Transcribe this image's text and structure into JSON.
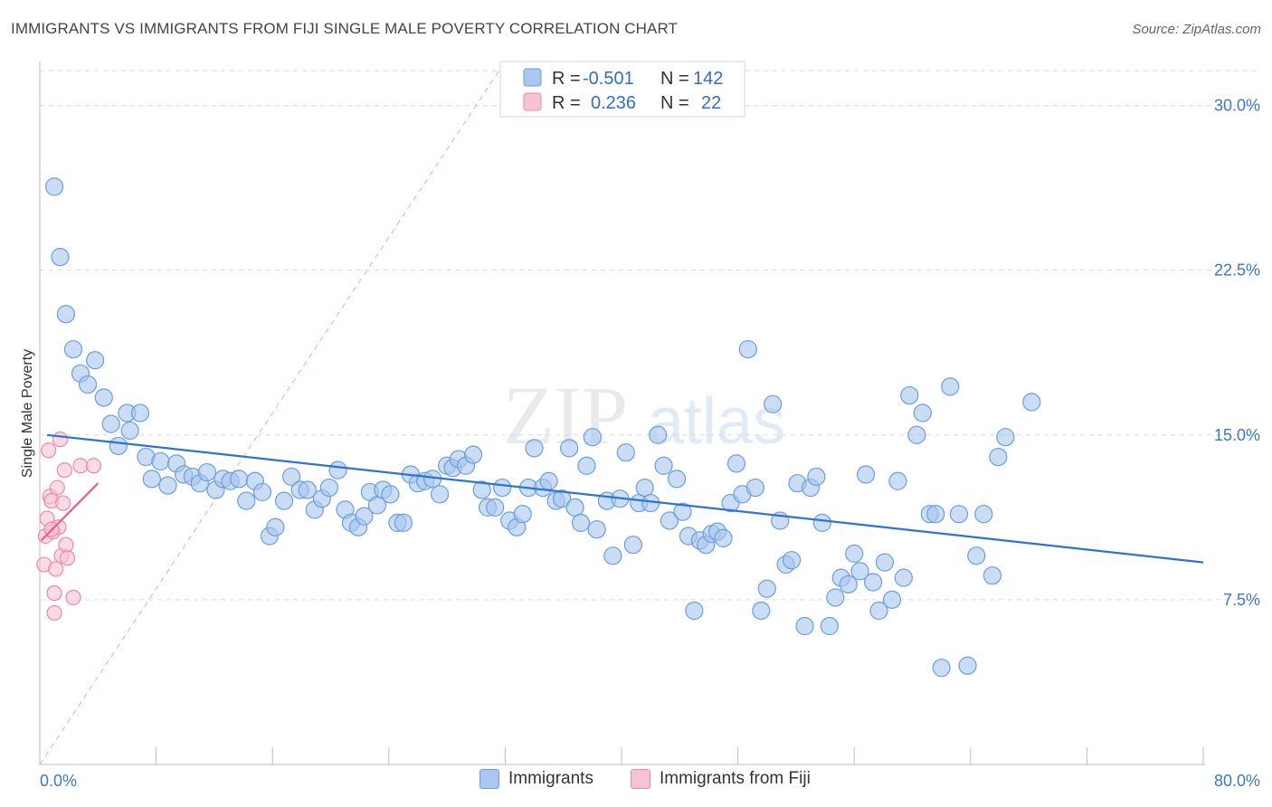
{
  "header": {
    "title": "IMMIGRANTS VS IMMIGRANTS FROM FIJI SINGLE MALE POVERTY CORRELATION CHART",
    "source": "Source: ZipAtlas.com"
  },
  "watermark": {
    "zip": "ZIP",
    "atlas": "atlas"
  },
  "legend_top": {
    "rows": [
      {
        "r_label": "R =",
        "r_value": "-0.501",
        "n_label": "N =",
        "n_value": "142"
      },
      {
        "r_label": "R =",
        "r_value": "0.236",
        "n_label": "N =",
        "n_value": "22"
      }
    ]
  },
  "legend_bottom": {
    "immigrants": "Immigrants",
    "fiji": "Immigrants from Fiji"
  },
  "colors": {
    "blue_fill": "#a9c7ef",
    "blue_stroke": "#6a9ee0",
    "blue_line": "#2e72d2",
    "pink_fill": "#f6c3d3",
    "pink_stroke": "#e98aa9",
    "pink_line": "#e0628b",
    "grid": "#d9d9d9",
    "tick_label": "#3a78c9"
  },
  "chart_data": {
    "type": "scatter",
    "title": "IMMIGRANTS VS IMMIGRANTS FROM FIJI SINGLE MALE POVERTY CORRELATION CHART",
    "xlabel": "",
    "ylabel": "Single Male Poverty",
    "xlim": [
      0,
      80
    ],
    "ylim": [
      0,
      32
    ],
    "x_tick_labels": [
      "0.0%",
      "80.0%"
    ],
    "y_tick_labels": [
      "7.5%",
      "15.0%",
      "22.5%",
      "30.0%"
    ],
    "y_ticks": [
      7.5,
      15.0,
      22.5,
      30.0
    ],
    "grid": true,
    "legend_placement": "top-center",
    "series": [
      {
        "name": "Immigrants",
        "R": -0.501,
        "N": 142,
        "trend": {
          "x": [
            0.5,
            80.0
          ],
          "y": [
            15.0,
            9.2
          ]
        },
        "points": [
          [
            1.0,
            26.3
          ],
          [
            1.4,
            23.1
          ],
          [
            1.8,
            20.5
          ],
          [
            2.3,
            18.9
          ],
          [
            2.8,
            17.8
          ],
          [
            3.3,
            17.3
          ],
          [
            3.8,
            18.4
          ],
          [
            4.4,
            16.7
          ],
          [
            4.9,
            15.5
          ],
          [
            5.4,
            14.5
          ],
          [
            6.0,
            16.0
          ],
          [
            6.2,
            15.2
          ],
          [
            6.9,
            16.0
          ],
          [
            7.3,
            14.0
          ],
          [
            7.7,
            13.0
          ],
          [
            8.3,
            13.8
          ],
          [
            8.8,
            12.7
          ],
          [
            9.4,
            13.7
          ],
          [
            9.9,
            13.2
          ],
          [
            10.5,
            13.1
          ],
          [
            11.0,
            12.8
          ],
          [
            11.5,
            13.3
          ],
          [
            12.1,
            12.5
          ],
          [
            12.6,
            13.0
          ],
          [
            13.1,
            12.9
          ],
          [
            13.7,
            13.0
          ],
          [
            14.2,
            12.0
          ],
          [
            14.8,
            12.9
          ],
          [
            15.3,
            12.4
          ],
          [
            15.8,
            10.4
          ],
          [
            16.2,
            10.8
          ],
          [
            16.8,
            12.0
          ],
          [
            17.3,
            13.1
          ],
          [
            17.9,
            12.5
          ],
          [
            18.4,
            12.5
          ],
          [
            18.9,
            11.6
          ],
          [
            19.4,
            12.1
          ],
          [
            19.9,
            12.6
          ],
          [
            20.5,
            13.4
          ],
          [
            21.0,
            11.6
          ],
          [
            21.4,
            11.0
          ],
          [
            21.9,
            10.8
          ],
          [
            22.3,
            11.3
          ],
          [
            22.7,
            12.4
          ],
          [
            23.2,
            11.8
          ],
          [
            23.6,
            12.5
          ],
          [
            24.1,
            12.3
          ],
          [
            24.6,
            11.0
          ],
          [
            25.0,
            11.0
          ],
          [
            25.5,
            13.2
          ],
          [
            26.0,
            12.8
          ],
          [
            26.5,
            12.9
          ],
          [
            27.0,
            13.0
          ],
          [
            27.5,
            12.3
          ],
          [
            28.0,
            13.6
          ],
          [
            28.4,
            13.5
          ],
          [
            28.8,
            13.9
          ],
          [
            29.3,
            13.6
          ],
          [
            29.8,
            14.1
          ],
          [
            30.4,
            12.5
          ],
          [
            30.8,
            11.7
          ],
          [
            31.3,
            11.7
          ],
          [
            31.8,
            12.6
          ],
          [
            32.3,
            11.1
          ],
          [
            32.8,
            10.8
          ],
          [
            33.2,
            11.4
          ],
          [
            33.6,
            12.6
          ],
          [
            34.0,
            14.4
          ],
          [
            34.6,
            12.6
          ],
          [
            35.0,
            12.9
          ],
          [
            35.5,
            12.0
          ],
          [
            35.9,
            12.1
          ],
          [
            36.4,
            14.4
          ],
          [
            36.8,
            11.7
          ],
          [
            37.2,
            11.0
          ],
          [
            37.6,
            13.6
          ],
          [
            38.0,
            14.9
          ],
          [
            38.3,
            10.7
          ],
          [
            39.0,
            12.0
          ],
          [
            39.4,
            9.5
          ],
          [
            39.9,
            12.1
          ],
          [
            40.3,
            14.2
          ],
          [
            40.8,
            10.0
          ],
          [
            41.2,
            11.9
          ],
          [
            41.6,
            12.6
          ],
          [
            42.0,
            11.9
          ],
          [
            42.5,
            15.0
          ],
          [
            42.9,
            13.6
          ],
          [
            43.3,
            11.1
          ],
          [
            43.8,
            13.0
          ],
          [
            44.2,
            11.5
          ],
          [
            44.6,
            10.4
          ],
          [
            45.0,
            7.0
          ],
          [
            45.4,
            10.2
          ],
          [
            45.8,
            10.0
          ],
          [
            46.2,
            10.5
          ],
          [
            46.6,
            10.6
          ],
          [
            47.0,
            10.3
          ],
          [
            47.5,
            11.9
          ],
          [
            47.9,
            13.7
          ],
          [
            48.3,
            12.3
          ],
          [
            48.7,
            18.9
          ],
          [
            49.2,
            12.6
          ],
          [
            49.6,
            7.0
          ],
          [
            50.0,
            8.0
          ],
          [
            50.4,
            16.4
          ],
          [
            50.9,
            11.1
          ],
          [
            51.3,
            9.1
          ],
          [
            51.7,
            9.3
          ],
          [
            52.1,
            12.8
          ],
          [
            52.6,
            6.3
          ],
          [
            53.0,
            12.6
          ],
          [
            53.4,
            13.1
          ],
          [
            53.8,
            11.0
          ],
          [
            54.3,
            6.3
          ],
          [
            54.7,
            7.6
          ],
          [
            55.1,
            8.5
          ],
          [
            55.6,
            8.2
          ],
          [
            56.0,
            9.6
          ],
          [
            56.4,
            8.8
          ],
          [
            56.8,
            13.2
          ],
          [
            57.3,
            8.3
          ],
          [
            57.7,
            7.0
          ],
          [
            58.1,
            9.2
          ],
          [
            58.6,
            7.5
          ],
          [
            59.0,
            12.9
          ],
          [
            59.4,
            8.5
          ],
          [
            59.8,
            16.8
          ],
          [
            60.3,
            15.0
          ],
          [
            60.7,
            16.0
          ],
          [
            61.2,
            11.4
          ],
          [
            61.6,
            11.4
          ],
          [
            62.0,
            4.4
          ],
          [
            62.6,
            17.2
          ],
          [
            63.2,
            11.4
          ],
          [
            63.8,
            4.5
          ],
          [
            64.4,
            9.5
          ],
          [
            64.9,
            11.4
          ],
          [
            65.5,
            8.6
          ],
          [
            65.9,
            14.0
          ],
          [
            66.4,
            14.9
          ],
          [
            68.2,
            16.5
          ]
        ]
      },
      {
        "name": "Immigrants from Fiji",
        "R": 0.236,
        "N": 22,
        "trend": {
          "x": [
            0.1,
            4.0
          ],
          "y": [
            10.2,
            12.8
          ]
        },
        "points": [
          [
            0.3,
            9.1
          ],
          [
            0.4,
            10.4
          ],
          [
            0.5,
            11.2
          ],
          [
            0.6,
            14.3
          ],
          [
            0.7,
            12.2
          ],
          [
            0.8,
            12.0
          ],
          [
            0.9,
            10.6
          ],
          [
            1.0,
            7.8
          ],
          [
            1.1,
            8.9
          ],
          [
            1.2,
            12.6
          ],
          [
            1.3,
            10.8
          ],
          [
            1.4,
            14.8
          ],
          [
            1.5,
            9.5
          ],
          [
            1.6,
            11.9
          ],
          [
            1.7,
            13.4
          ],
          [
            1.8,
            10.0
          ],
          [
            1.9,
            9.4
          ],
          [
            1.0,
            6.9
          ],
          [
            2.3,
            7.6
          ],
          [
            2.8,
            13.6
          ],
          [
            3.7,
            13.6
          ],
          [
            0.8,
            10.7
          ]
        ]
      }
    ]
  }
}
